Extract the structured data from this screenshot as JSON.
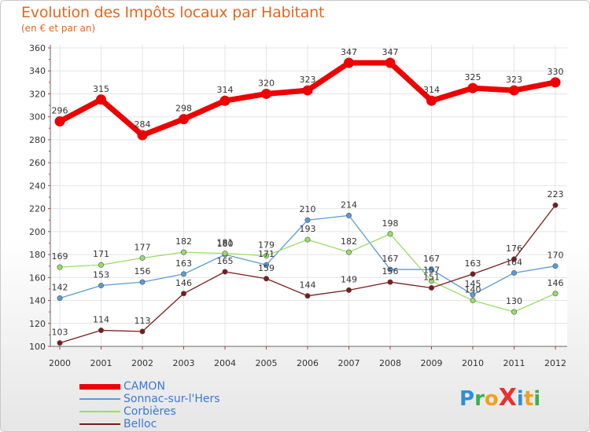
{
  "title": "Evolution des Impôts locaux par Habitant",
  "subtitle": "(en € et par an)",
  "logo": {
    "text": "ProXiti",
    "letters": [
      "P",
      "r",
      "o",
      "X",
      "i",
      "t",
      "i"
    ],
    "colors": [
      "#2e8fd8",
      "#3cb04a",
      "#f0a020",
      "#e83030",
      "#2e8fd8",
      "#f0a020",
      "#3cb04a"
    ]
  },
  "chart_data": {
    "type": "line",
    "title": "Evolution des Impôts locaux par Habitant",
    "subtitle": "(en € et par an)",
    "xlabel": "",
    "ylabel": "",
    "x": [
      "2000",
      "2001",
      "2002",
      "2003",
      "2004",
      "2005",
      "2006",
      "2007",
      "2008",
      "2009",
      "2010",
      "2011",
      "2012"
    ],
    "ylim": [
      100,
      360
    ],
    "yticks": [
      100,
      120,
      140,
      160,
      180,
      200,
      220,
      240,
      260,
      280,
      300,
      320,
      340,
      360
    ],
    "grid": true,
    "legend": "bottom-left",
    "series": [
      {
        "name": "CAMON",
        "color": "#ee0000",
        "width": 7,
        "values": [
          296,
          315,
          284,
          298,
          314,
          320,
          323,
          347,
          347,
          314,
          325,
          323,
          330
        ],
        "labels": [
          "296",
          "315",
          "284",
          "298",
          "314",
          "320",
          "323",
          "347",
          "347",
          "314",
          "325",
          "323",
          "330"
        ]
      },
      {
        "name": "Sonnac-sur-l'Hers",
        "color": "#5b9bd5",
        "width": 1.3,
        "values": [
          142,
          153,
          156,
          163,
          180,
          171,
          210,
          214,
          167,
          167,
          145,
          164,
          170
        ],
        "labels": [
          "142",
          "153",
          "156",
          "163",
          "180",
          "171",
          "210",
          "214",
          "167",
          "167",
          "145",
          "164",
          "170"
        ]
      },
      {
        "name": "Corbières",
        "color": "#99dd66",
        "width": 1.3,
        "values": [
          169,
          171,
          177,
          182,
          181,
          179,
          193,
          182,
          198,
          157,
          140,
          130,
          146
        ],
        "labels": [
          "169",
          "171",
          "177",
          "182",
          "181",
          "179",
          "193",
          "182",
          "198",
          "157",
          "140",
          "130",
          "146"
        ]
      },
      {
        "name": "Belloc",
        "color": "#7a1c1c",
        "width": 1.3,
        "values": [
          103,
          114,
          113,
          146,
          165,
          159,
          144,
          149,
          156,
          151,
          163,
          176,
          223
        ],
        "labels": [
          "103",
          "114",
          "113",
          "146",
          "165",
          "159",
          "144",
          "149",
          "156",
          "151",
          "163",
          "176",
          "223"
        ]
      }
    ]
  }
}
